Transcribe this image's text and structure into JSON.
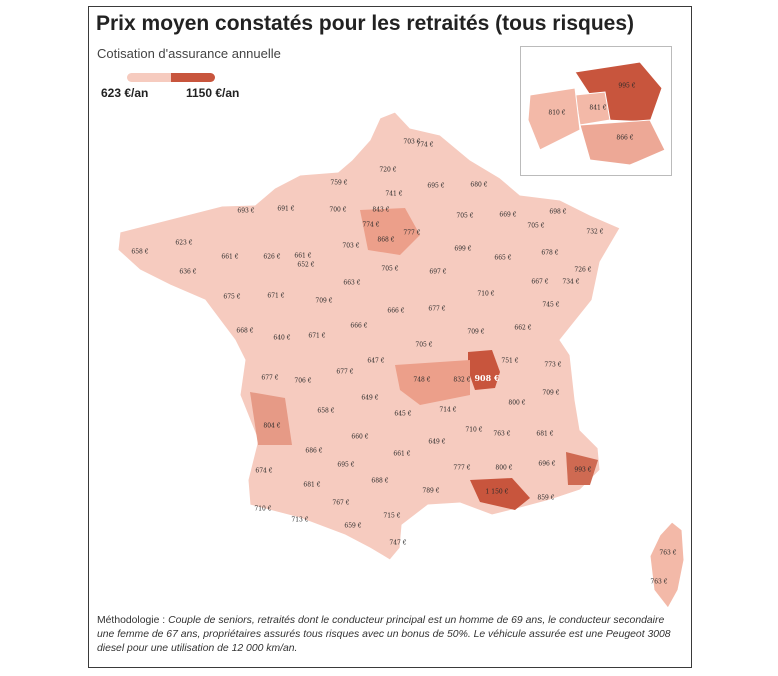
{
  "title": "Prix moyen constatés pour les retraités (tous risques)",
  "subtitle": "Cotisation d'assurance annuelle",
  "legend": {
    "min_label": "623 €/an",
    "max_label": "1150 €/an",
    "min_color": "#f6cbbf",
    "max_color": "#c8553d"
  },
  "methodology": {
    "prefix": "Méthodologie : ",
    "text": "Couple de seniors, retraités dont le conducteur principal est un homme de 69 ans, le conducteur secondaire une femme de 67 ans, propriétaires assurés tous risques avec un bonus de 50%. Le véhicule assurée est une Peugeot 3008 diesel pour une utilisation de 12 000 km/an."
  },
  "departments": [
    "703 €",
    "774 €",
    "720 €",
    "759 €",
    "741 €",
    "695 €",
    "680 €",
    "693 €",
    "691 €",
    "700 €",
    "843 €",
    "705 €",
    "669 €",
    "698 €",
    "774 €",
    "868 €",
    "777 €",
    "705 €",
    "732 €",
    "658 €",
    "623 €",
    "661 €",
    "626 €",
    "661 €",
    "703 €",
    "699 €",
    "665 €",
    "678 €",
    "636 €",
    "652 €",
    "705 €",
    "697 €",
    "726 €",
    "675 €",
    "671 €",
    "663 €",
    "710 €",
    "667 €",
    "734 €",
    "709 €",
    "745 €",
    "668 €",
    "640 €",
    "671 €",
    "666 €",
    "666 €",
    "677 €",
    "709 €",
    "662 €",
    "705 €",
    "751 €",
    "647 €",
    "773 €",
    "677 €",
    "706 €",
    "677 €",
    "748 €",
    "832 €",
    "908 €",
    "709 €",
    "649 €",
    "800 €",
    "804 €",
    "658 €",
    "645 €",
    "714 €",
    "710 €",
    "763 €",
    "681 €",
    "660 €",
    "649 €",
    "686 €",
    "661 €",
    "674 €",
    "695 €",
    "777 €",
    "800 €",
    "696 €",
    "993 €",
    "688 €",
    "681 €",
    "789 €",
    "1 150 €",
    "859 €",
    "710 €",
    "767 €",
    "713 €",
    "715 €",
    "659 €",
    "747 €",
    "763 €",
    "763 €"
  ],
  "inset_departments": [
    "995 €",
    "841 €",
    "810 €",
    "866 €"
  ]
}
